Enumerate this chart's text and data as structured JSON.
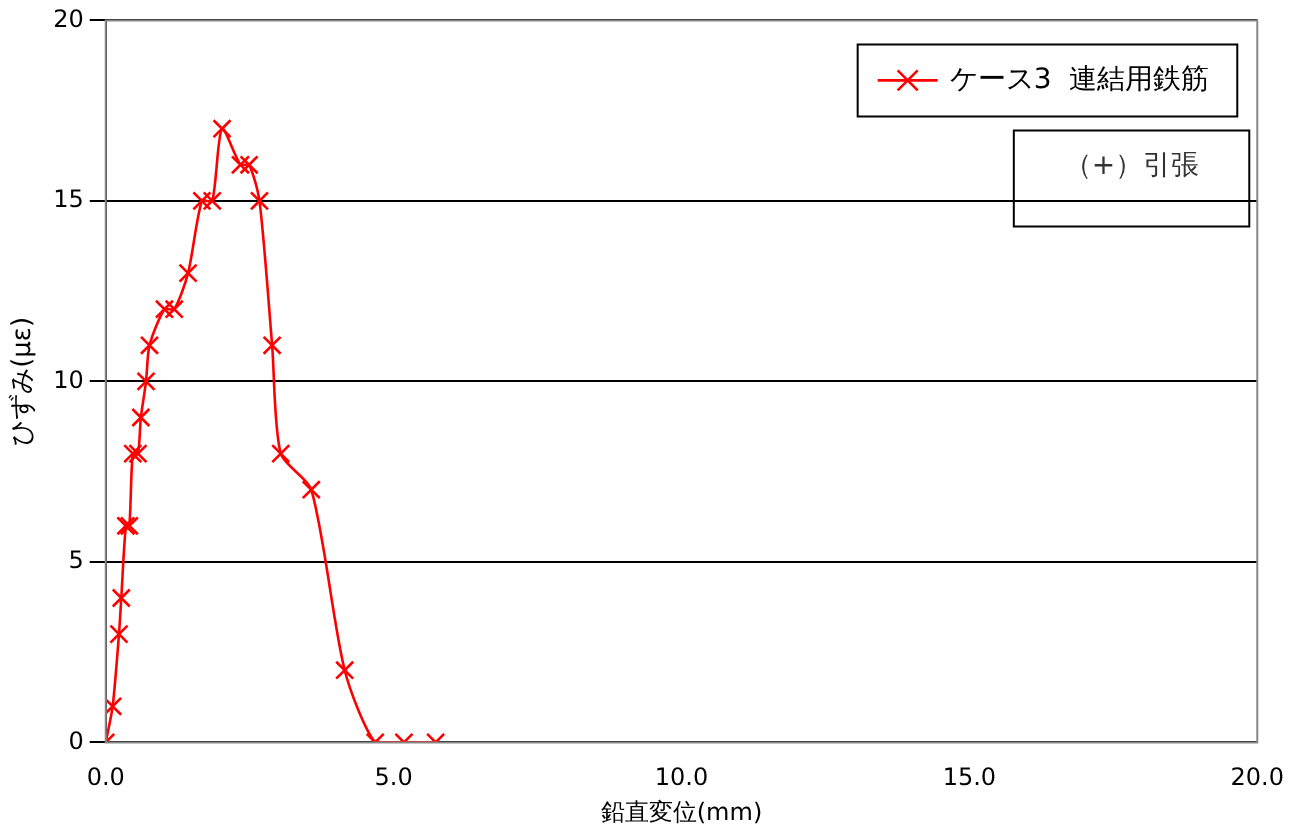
{
  "chart_data": {
    "type": "line",
    "xlabel": "鉛直変位(mm)",
    "ylabel": "ひずみ(με)",
    "annotations": [
      "（+）引張"
    ],
    "series": [
      {
        "name": "ケース3  連結用鉄筋",
        "color": "#ff0000",
        "x": [
          0,
          0.12,
          0.23,
          0.27,
          0.35,
          0.41,
          0.47,
          0.56,
          0.61,
          0.7,
          0.76,
          1.02,
          1.19,
          1.43,
          1.67,
          1.85,
          2.02,
          2.34,
          2.49,
          2.67,
          2.89,
          3.04,
          3.57,
          4.15,
          4.68,
          5.18,
          5.73
        ],
        "values": [
          0,
          1,
          3,
          4,
          6,
          6,
          8,
          8,
          9,
          10,
          11,
          12,
          12,
          13,
          15,
          15,
          17,
          16,
          16,
          15,
          11,
          8,
          7,
          2,
          0,
          0,
          0
        ]
      }
    ],
    "xlim": [
      0,
      20
    ],
    "xticks": [
      {
        "value": 0,
        "label": "0.0"
      },
      {
        "value": 5,
        "label": "5.0"
      },
      {
        "value": 10,
        "label": "10.0"
      },
      {
        "value": 15,
        "label": "15.0"
      },
      {
        "value": 20,
        "label": "20.0"
      }
    ],
    "ylim": [
      0,
      20
    ],
    "yticks": [
      0,
      5,
      10,
      15,
      20
    ],
    "grid": "y",
    "legend": "top right",
    "marker": "cross",
    "line_style": "solid"
  }
}
